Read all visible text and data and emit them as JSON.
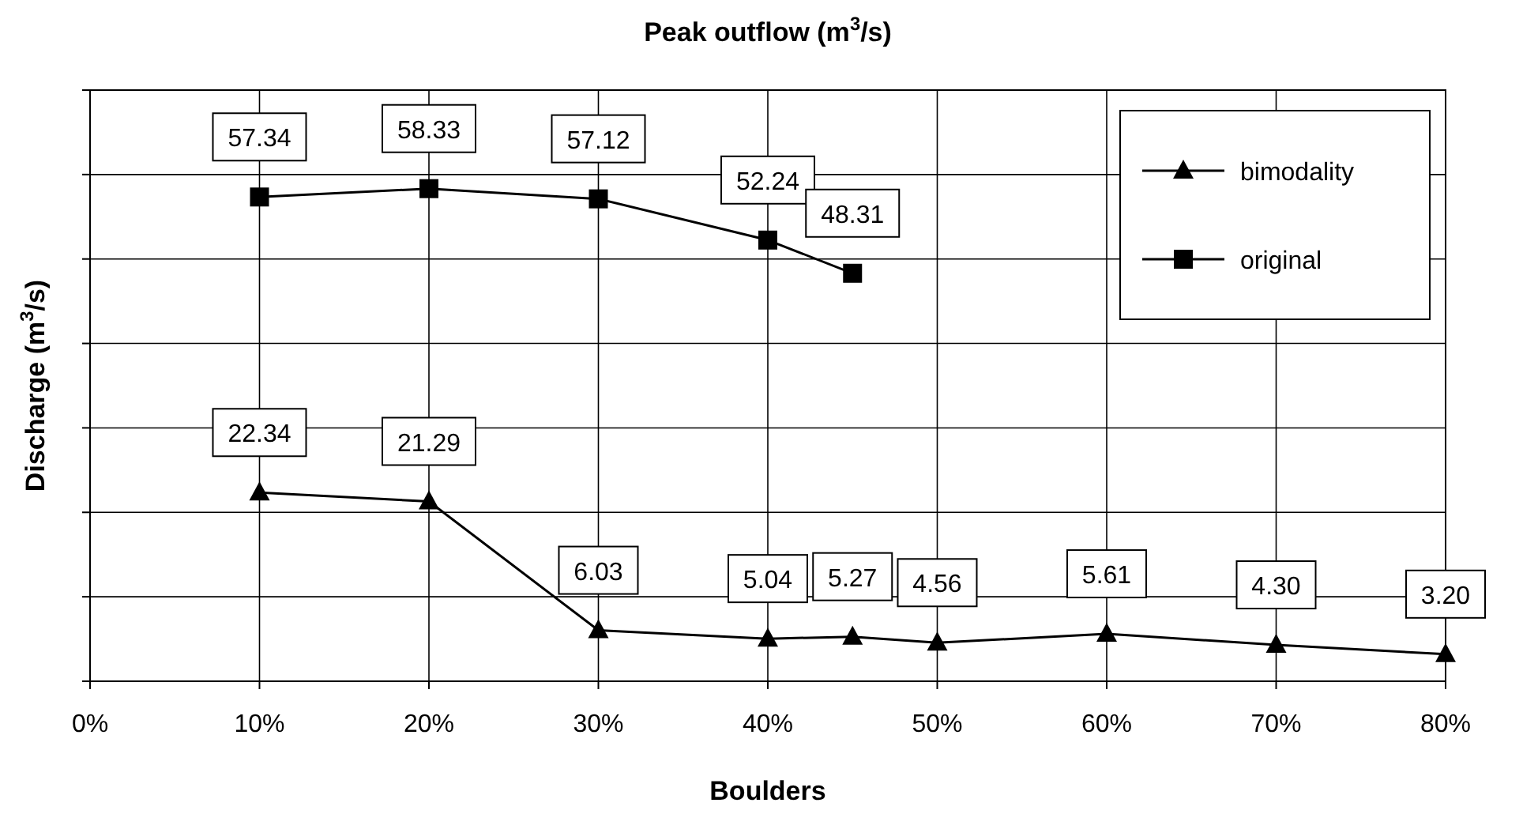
{
  "chart_data": {
    "type": "line",
    "title": "Peak outflow (m$^{3}$/s)",
    "xlabel": "Boulders",
    "ylabel": "Discharge (m$^{3}$/s)",
    "xlim": [
      0,
      80
    ],
    "xticks": [
      {
        "value": 0,
        "label": "0%"
      },
      {
        "value": 10,
        "label": "10%"
      },
      {
        "value": 20,
        "label": "20%"
      },
      {
        "value": 30,
        "label": "30%"
      },
      {
        "value": 40,
        "label": "40%"
      },
      {
        "value": 50,
        "label": "50%"
      },
      {
        "value": 60,
        "label": "60%"
      },
      {
        "value": 70,
        "label": "70%"
      },
      {
        "value": 80,
        "label": "80%"
      }
    ],
    "ylim": [
      0,
      70
    ],
    "yticks": [
      {
        "value": 0,
        "label": null
      },
      {
        "value": 10,
        "label": null
      },
      {
        "value": 20,
        "label": null
      },
      {
        "value": 30,
        "label": null
      },
      {
        "value": 40,
        "label": null
      },
      {
        "value": 50,
        "label": null
      },
      {
        "value": 60,
        "label": null
      },
      {
        "value": 70,
        "label": null
      }
    ],
    "tick_labels": "x",
    "grid": true,
    "legend": "top right",
    "series": [
      {
        "name": "bimodality",
        "color": "#000000",
        "marker": "triangle",
        "x": [
          10,
          20,
          30,
          40,
          45,
          50,
          60,
          70,
          80
        ],
        "values": [
          22.34,
          21.29,
          6.03,
          5.04,
          5.27,
          4.56,
          5.61,
          4.3,
          3.2
        ],
        "value_labels": [
          "22.34",
          "21.29",
          "6.03",
          "5.04",
          "5.27",
          "4.56",
          "5.61",
          "4.30",
          "3.20"
        ]
      },
      {
        "name": "original",
        "color": "#000000",
        "marker": "square",
        "x": [
          10,
          20,
          30,
          40,
          45
        ],
        "values": [
          57.34,
          58.33,
          57.12,
          52.24,
          48.31
        ],
        "value_labels": [
          "57.34",
          "58.33",
          "57.12",
          "52.24",
          "48.31"
        ]
      }
    ]
  }
}
